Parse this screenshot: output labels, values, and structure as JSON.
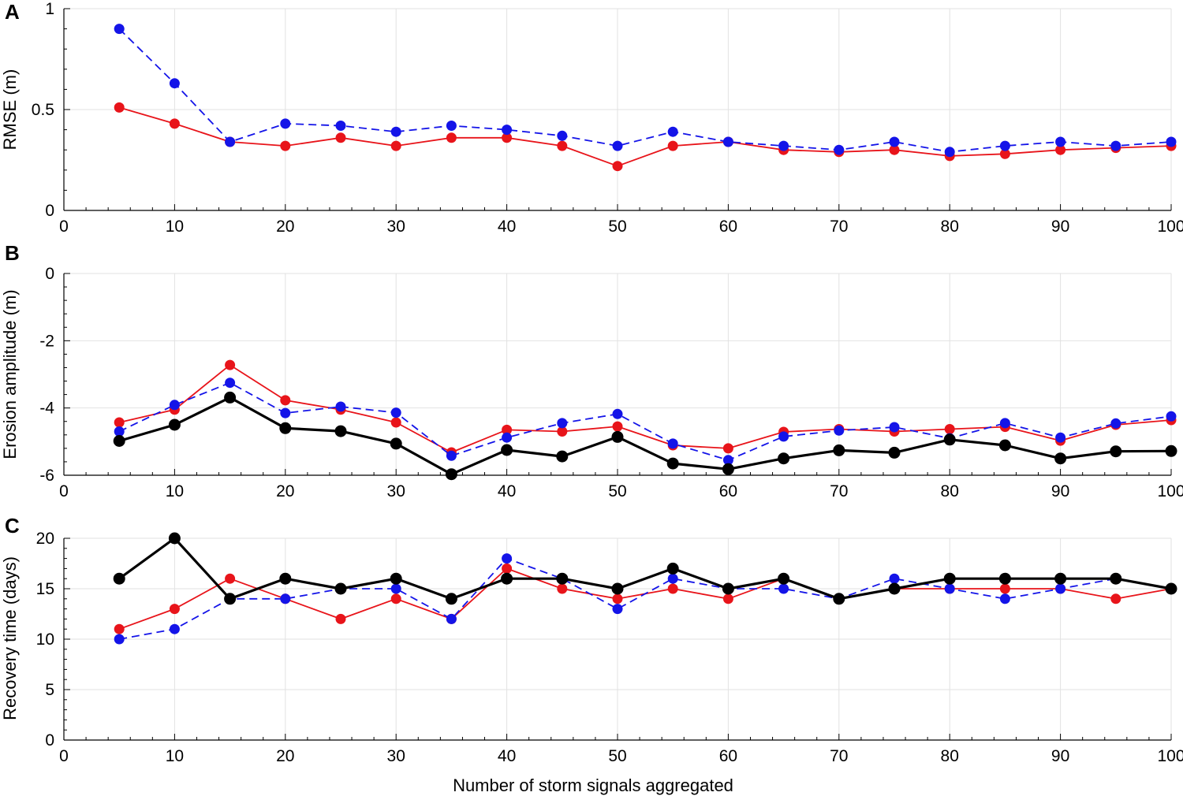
{
  "figure": {
    "xlabel": "Number of storm signals aggregated"
  },
  "chart_data": [
    {
      "type": "line",
      "panel": "A",
      "ylabel": "RMSE (m)",
      "xlim": [
        0,
        100
      ],
      "ylim": [
        0,
        1
      ],
      "xticks": [
        0,
        10,
        20,
        30,
        40,
        50,
        60,
        70,
        80,
        90,
        100
      ],
      "yticks": [
        0,
        0.5,
        1
      ],
      "yminor": [
        0.1,
        0.2,
        0.3,
        0.4,
        0.6,
        0.7,
        0.8,
        0.9
      ],
      "grid": true,
      "x": [
        5,
        10,
        15,
        20,
        25,
        30,
        35,
        40,
        45,
        50,
        55,
        60,
        65,
        70,
        75,
        80,
        85,
        90,
        95,
        100
      ],
      "series": [
        {
          "name": "red",
          "color": "#e8141a",
          "dashed": false,
          "values": [
            0.51,
            0.43,
            0.34,
            0.32,
            0.36,
            0.32,
            0.36,
            0.36,
            0.32,
            0.22,
            0.32,
            0.34,
            0.3,
            0.29,
            0.3,
            0.27,
            0.28,
            0.3,
            0.31,
            0.32
          ]
        },
        {
          "name": "blue",
          "color": "#1414e8",
          "dashed": true,
          "values": [
            0.9,
            0.63,
            0.34,
            0.43,
            0.42,
            0.39,
            0.42,
            0.4,
            0.37,
            0.32,
            0.39,
            0.34,
            0.32,
            0.3,
            0.34,
            0.29,
            0.32,
            0.34,
            0.32,
            0.34
          ]
        }
      ]
    },
    {
      "type": "line",
      "panel": "B",
      "ylabel": "Erosion amplitude (m)",
      "xlim": [
        0,
        100
      ],
      "ylim": [
        -6,
        0
      ],
      "xticks": [
        0,
        10,
        20,
        30,
        40,
        50,
        60,
        70,
        80,
        90,
        100
      ],
      "yticks": [
        -6,
        -4,
        -2,
        0
      ],
      "yminor": [
        -5.6,
        -5.2,
        -4.8,
        -4.4,
        -3.6,
        -3.2,
        -2.8,
        -2.4,
        -1.6,
        -1.2,
        -0.8,
        -0.4
      ],
      "grid": true,
      "x": [
        5,
        10,
        15,
        20,
        25,
        30,
        35,
        40,
        45,
        50,
        55,
        60,
        65,
        70,
        75,
        80,
        85,
        90,
        95,
        100
      ],
      "series": [
        {
          "name": "red",
          "color": "#e8141a",
          "dashed": false,
          "values": [
            -4.43,
            -4.05,
            -2.72,
            -3.77,
            -4.05,
            -4.43,
            -5.32,
            -4.65,
            -4.7,
            -4.55,
            -5.11,
            -5.2,
            -4.71,
            -4.63,
            -4.7,
            -4.63,
            -4.56,
            -4.97,
            -4.5,
            -4.36
          ]
        },
        {
          "name": "blue",
          "color": "#1414e8",
          "dashed": true,
          "values": [
            -4.7,
            -3.91,
            -3.25,
            -4.15,
            -3.96,
            -4.14,
            -5.42,
            -4.88,
            -4.45,
            -4.18,
            -5.06,
            -5.55,
            -4.85,
            -4.67,
            -4.57,
            -4.9,
            -4.45,
            -4.88,
            -4.46,
            -4.25
          ]
        },
        {
          "name": "black",
          "color": "#000000",
          "dashed": false,
          "thick": true,
          "values": [
            -4.98,
            -4.5,
            -3.69,
            -4.6,
            -4.69,
            -5.06,
            -5.97,
            -5.25,
            -5.44,
            -4.86,
            -5.65,
            -5.82,
            -5.5,
            -5.26,
            -5.33,
            -4.94,
            -5.11,
            -5.5,
            -5.29,
            -5.28
          ]
        }
      ]
    },
    {
      "type": "line",
      "panel": "C",
      "ylabel": "Recovery time (days)",
      "xlim": [
        0,
        100
      ],
      "ylim": [
        0,
        20
      ],
      "xticks": [
        0,
        10,
        20,
        30,
        40,
        50,
        60,
        70,
        80,
        90,
        100
      ],
      "yticks": [
        0,
        5,
        10,
        15,
        20
      ],
      "yminor": [
        1,
        2,
        3,
        4,
        6,
        7,
        8,
        9,
        11,
        12,
        13,
        14,
        16,
        17,
        18,
        19
      ],
      "grid": true,
      "x": [
        5,
        10,
        15,
        20,
        25,
        30,
        35,
        40,
        45,
        50,
        55,
        60,
        65,
        70,
        75,
        80,
        85,
        90,
        95,
        100
      ],
      "series": [
        {
          "name": "red",
          "color": "#e8141a",
          "dashed": false,
          "values": [
            11,
            13,
            16,
            14,
            12,
            14,
            12,
            17,
            15,
            14,
            15,
            14,
            16,
            14,
            15,
            15,
            15,
            15,
            14,
            15
          ]
        },
        {
          "name": "blue",
          "color": "#1414e8",
          "dashed": true,
          "values": [
            10,
            11,
            14,
            14,
            15,
            15,
            12,
            18,
            16,
            13,
            16,
            15,
            15,
            14,
            16,
            15,
            14,
            15,
            16,
            15
          ]
        },
        {
          "name": "black",
          "color": "#000000",
          "dashed": false,
          "thick": true,
          "values": [
            16,
            20,
            14,
            16,
            15,
            16,
            14,
            16,
            16,
            15,
            17,
            15,
            16,
            14,
            15,
            16,
            16,
            16,
            16,
            15
          ]
        }
      ]
    }
  ]
}
